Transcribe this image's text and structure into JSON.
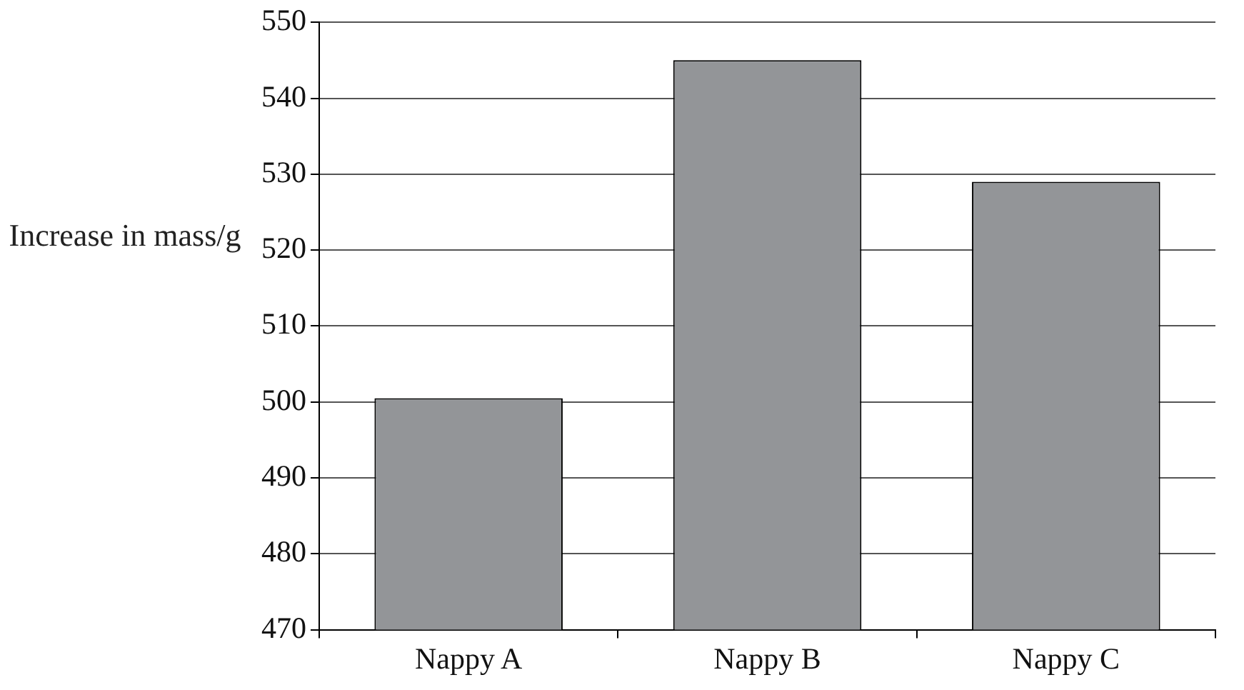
{
  "chart_data": {
    "type": "bar",
    "ylabel": "Increase in mass/g",
    "categories": [
      "Nappy A",
      "Nappy B",
      "Nappy C"
    ],
    "values": [
      500.5,
      545,
      529
    ],
    "color": "#939598",
    "ylim": [
      470,
      550
    ],
    "yticks": [
      470,
      480,
      490,
      500,
      510,
      520,
      530,
      540,
      550
    ],
    "grid": "y"
  }
}
